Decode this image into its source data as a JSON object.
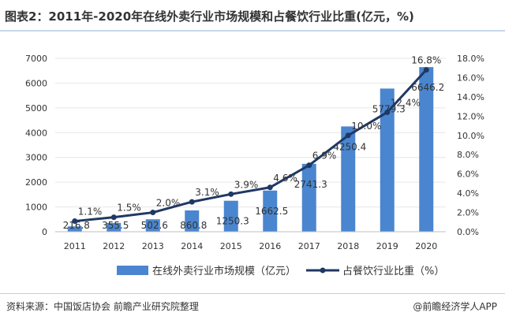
{
  "title": "图表2：2011年-2020年在线外卖行业市场规模和占餐饮行业比重(亿元，%)",
  "source": "资料来源：中国饭店协会 前瞻产业研究院整理",
  "brand": "@前瞻经济学人APP",
  "colors": {
    "bar": "#4a86cf",
    "line": "#1f3864",
    "grid": "#e6e6e6",
    "axis": "#bfbfbf"
  },
  "chart_data": {
    "type": "bar",
    "categories": [
      "2011",
      "2012",
      "2013",
      "2014",
      "2015",
      "2016",
      "2017",
      "2018",
      "2019",
      "2020"
    ],
    "series": [
      {
        "name": "在线外卖行业市场规模（亿元）",
        "type": "bar",
        "axis": "left",
        "values": [
          216.8,
          355.5,
          502.6,
          860.8,
          1250.3,
          1662.5,
          2741.3,
          4250.4,
          5779.3,
          6646.2
        ],
        "labels": [
          "216.8",
          "355.5",
          "502.6",
          "860.8",
          "1250.3",
          "1662.5",
          "2741.3",
          "4250.4",
          "5779.3",
          "6646.2"
        ]
      },
      {
        "name": "占餐饮行业比重（%）",
        "type": "line",
        "axis": "right",
        "values": [
          1.1,
          1.5,
          2.0,
          3.1,
          3.9,
          4.6,
          6.9,
          10.0,
          12.4,
          16.8
        ],
        "labels": [
          "1.1%",
          "1.5%",
          "2.0%",
          "3.1%",
          "3.9%",
          "4.6%",
          "6.9%",
          "10.0%",
          "12.4%",
          "16.8%"
        ]
      }
    ],
    "y_left": {
      "min": 0,
      "max": 7000,
      "ticks": [
        "0",
        "1000",
        "2000",
        "3000",
        "4000",
        "5000",
        "6000",
        "7000"
      ]
    },
    "y_right": {
      "min": 0,
      "max": 18,
      "ticks": [
        "0.0%",
        "2.0%",
        "4.0%",
        "6.0%",
        "8.0%",
        "10.0%",
        "12.0%",
        "14.0%",
        "16.0%",
        "18.0%"
      ]
    },
    "grid": true,
    "legend_position": "bottom"
  }
}
